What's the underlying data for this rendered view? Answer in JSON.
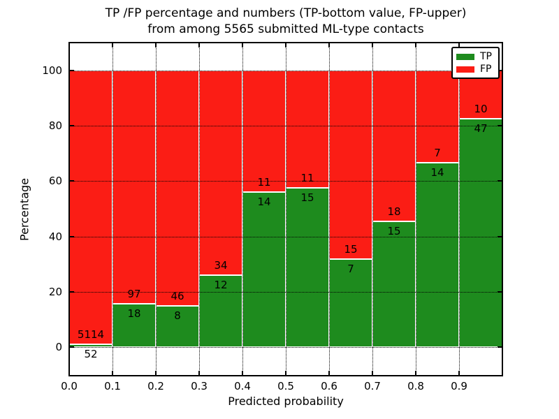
{
  "figure": {
    "title_line1": "TP /FP percentage and numbers (TP-bottom value, FP-upper)",
    "title_line2": "from among 5565 submitted ML-type contacts"
  },
  "chart_data": {
    "type": "bar",
    "stacked": true,
    "normalized": "each bar scaled to 100%",
    "title": "TP /FP percentage and numbers (TP-bottom value, FP-upper)\nfrom among 5565 submitted ML-type contacts",
    "xlabel": "Predicted probability",
    "ylabel": "Percentage",
    "total_contacts": 5565,
    "categories": [
      "0.0",
      "0.1",
      "0.2",
      "0.3",
      "0.4",
      "0.5",
      "0.6",
      "0.7",
      "0.8",
      "0.9"
    ],
    "bin_width": 0.1,
    "yticks": [
      0,
      20,
      40,
      60,
      80,
      100
    ],
    "ylim": [
      -10.4,
      110.1
    ],
    "grid": true,
    "grid_style": "dotted",
    "bar_edge_color": "#ffffff",
    "series": [
      {
        "name": "TP",
        "color": "#1e8b1e",
        "counts": [
          52,
          18,
          8,
          12,
          14,
          15,
          7,
          15,
          14,
          47
        ],
        "pct": [
          1.01,
          15.65,
          14.81,
          26.09,
          56.0,
          57.69,
          31.82,
          45.45,
          66.67,
          82.46
        ]
      },
      {
        "name": "FP",
        "color": "#fb1d15",
        "counts": [
          5114,
          97,
          46,
          34,
          11,
          11,
          15,
          18,
          7,
          10
        ],
        "pct": [
          98.99,
          84.35,
          85.19,
          73.91,
          44.0,
          42.31,
          68.18,
          54.55,
          33.33,
          17.54
        ]
      }
    ],
    "legend": {
      "position": "upper right",
      "entries": [
        {
          "label": "TP",
          "color": "#1e8b1e"
        },
        {
          "label": "FP",
          "color": "#fb1d15"
        }
      ]
    }
  }
}
